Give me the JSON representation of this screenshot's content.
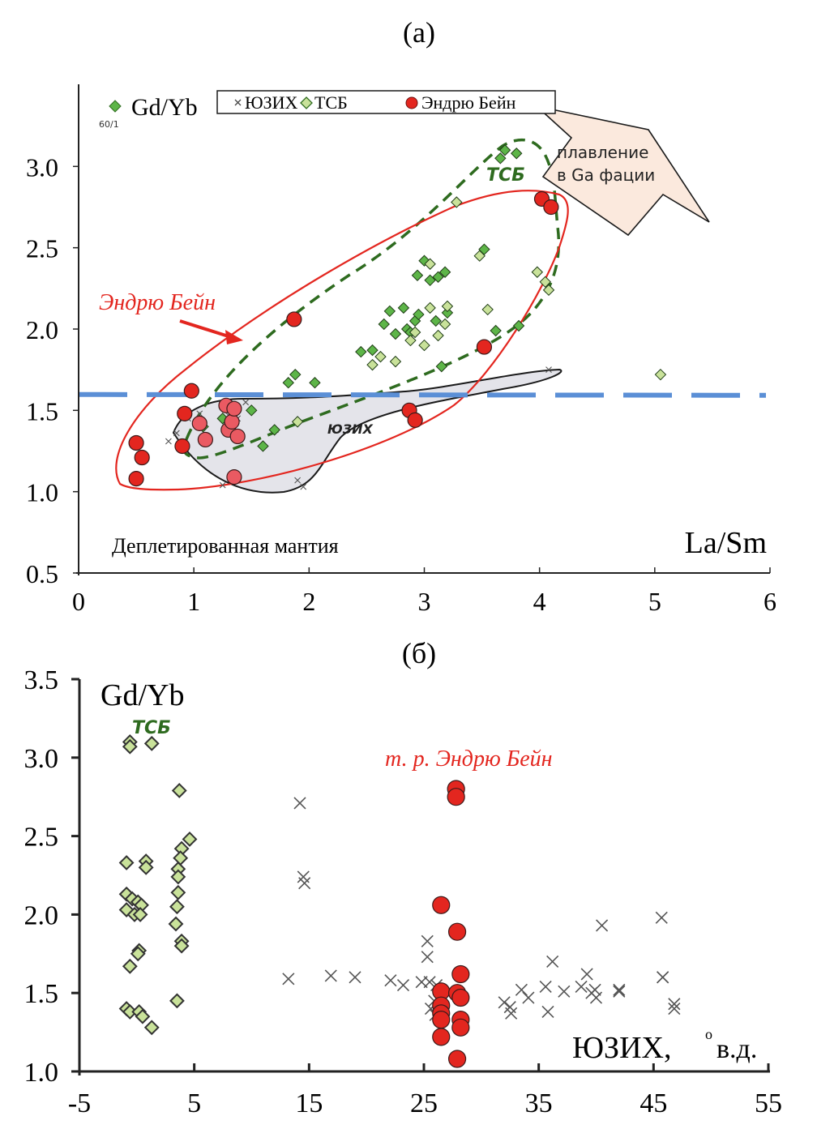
{
  "colors": {
    "ypg_cross": "#555555",
    "tsb_dark": "#5db548",
    "tsb_light": "#c9e29a",
    "tsb_outline": "#2e6b1f",
    "andrew_bain": "#e3261f",
    "andrew_bain_pale": "#ea5a62",
    "ypg_field": "#e4e4ea",
    "threshold_line": "#5b8fd6",
    "arrow_fill": "#fbe9dd"
  },
  "chart_data": [
    {
      "type": "scatter",
      "panel_label": "(a)",
      "xlabel": "La/Sm",
      "ylabel": "Gd/Yb",
      "ylabel_note": "60/1",
      "xlim": [
        0,
        6
      ],
      "ylim": [
        0.5,
        3.5
      ],
      "xticks": [
        "0",
        "1",
        "2",
        "3",
        "4",
        "5",
        "6"
      ],
      "yticks": [
        "0.5",
        "1.0",
        "1.5",
        "2.0",
        "2.5",
        "3.0"
      ],
      "legend": {
        "position": "top",
        "entries": [
          "ЮЗИХ",
          "ТСБ",
          "Эндрю Бейн"
        ]
      },
      "annotations": {
        "depleted_mantle": "Деплетированная мантия",
        "garnet_melting_line1": "плавление",
        "garnet_melting_line2": "в Ga фации",
        "tsb_field": "ТСБ",
        "ypg_field": "ЮЗИХ",
        "andrew_bain_label": "Эндрю Бейн"
      },
      "threshold_y": 1.6,
      "series": [
        {
          "name": "ЮЗИХ",
          "marker": "x",
          "points": [
            [
              0.78,
              1.31
            ],
            [
              0.85,
              1.36
            ],
            [
              0.95,
              1.45
            ],
            [
              1.05,
              1.48
            ],
            [
              1.25,
              1.04
            ],
            [
              1.3,
              1.47
            ],
            [
              1.38,
              1.45
            ],
            [
              1.45,
              1.55
            ],
            [
              1.9,
              1.07
            ],
            [
              1.95,
              1.03
            ],
            [
              4.08,
              1.75
            ]
          ]
        },
        {
          "name": "ТСБ (dark)",
          "marker": "diamond",
          "points": [
            [
              1.08,
              1.4
            ],
            [
              1.25,
              1.45
            ],
            [
              1.5,
              1.5
            ],
            [
              1.6,
              1.28
            ],
            [
              1.7,
              1.38
            ],
            [
              1.82,
              1.67
            ],
            [
              1.88,
              1.72
            ],
            [
              2.05,
              1.67
            ],
            [
              2.45,
              1.86
            ],
            [
              2.55,
              1.87
            ],
            [
              2.65,
              2.03
            ],
            [
              2.7,
              2.11
            ],
            [
              2.75,
              1.97
            ],
            [
              2.82,
              2.13
            ],
            [
              2.85,
              2.0
            ],
            [
              2.88,
              1.98
            ],
            [
              2.92,
              2.05
            ],
            [
              2.94,
              2.33
            ],
            [
              2.95,
              2.09
            ],
            [
              3.0,
              2.42
            ],
            [
              3.05,
              2.3
            ],
            [
              3.1,
              2.05
            ],
            [
              3.12,
              2.32
            ],
            [
              3.18,
              2.35
            ],
            [
              3.2,
              2.1
            ],
            [
              3.15,
              1.77
            ],
            [
              3.52,
              2.49
            ],
            [
              3.62,
              1.99
            ],
            [
              3.66,
              3.05
            ],
            [
              3.7,
              3.1
            ],
            [
              3.8,
              3.08
            ],
            [
              3.82,
              2.02
            ]
          ]
        },
        {
          "name": "ТСБ (light)",
          "marker": "diamond",
          "points": [
            [
              1.9,
              1.43
            ],
            [
              2.55,
              1.78
            ],
            [
              2.62,
              1.83
            ],
            [
              2.75,
              1.8
            ],
            [
              2.88,
              1.93
            ],
            [
              2.92,
              1.98
            ],
            [
              3.0,
              1.9
            ],
            [
              3.05,
              2.13
            ],
            [
              3.12,
              1.96
            ],
            [
              3.18,
              2.03
            ],
            [
              3.2,
              2.14
            ],
            [
              3.05,
              2.4
            ],
            [
              3.28,
              2.78
            ],
            [
              3.48,
              2.45
            ],
            [
              3.55,
              2.12
            ],
            [
              3.98,
              2.35
            ],
            [
              4.05,
              2.29
            ],
            [
              4.08,
              2.24
            ],
            [
              5.05,
              1.72
            ]
          ]
        },
        {
          "name": "Эндрю Бейн",
          "marker": "circle",
          "points": [
            [
              0.5,
              1.3
            ],
            [
              0.55,
              1.21
            ],
            [
              0.5,
              1.08
            ],
            [
              0.9,
              1.28
            ],
            [
              0.92,
              1.48
            ],
            [
              0.98,
              1.62
            ],
            [
              1.05,
              1.42
            ],
            [
              1.1,
              1.32
            ],
            [
              1.28,
              1.53
            ],
            [
              1.3,
              1.38
            ],
            [
              1.33,
              1.43
            ],
            [
              1.35,
              1.51
            ],
            [
              1.38,
              1.34
            ],
            [
              1.35,
              1.09
            ],
            [
              1.87,
              2.06
            ],
            [
              2.87,
              1.5
            ],
            [
              2.92,
              1.44
            ],
            [
              3.52,
              1.89
            ],
            [
              4.02,
              2.8
            ],
            [
              4.1,
              2.75
            ]
          ]
        }
      ]
    },
    {
      "type": "scatter",
      "panel_label": "(б)",
      "xlabel": "ЮЗИХ, °в.д.",
      "xlabel_text": "ЮЗИХ,",
      "xlabel_degree": "o",
      "xlabel_unit": "в.д.",
      "ylabel": "Gd/Yb",
      "xlim": [
        -5,
        55
      ],
      "ylim": [
        1.0,
        3.5
      ],
      "xticks": [
        "-5",
        "5",
        "15",
        "25",
        "35",
        "45",
        "55"
      ],
      "yticks": [
        "1.0",
        "1.5",
        "2.0",
        "2.5",
        "3.0",
        "3.5"
      ],
      "annotations": {
        "tsb_label": "ТСБ",
        "andrew_bain_label": "т. р. Эндрю Бейн"
      },
      "series": [
        {
          "name": "ТСБ",
          "marker": "diamond",
          "points": [
            [
              -0.6,
              3.1
            ],
            [
              -0.6,
              3.07
            ],
            [
              1.3,
              3.09
            ],
            [
              3.7,
              2.79
            ],
            [
              4.6,
              2.48
            ],
            [
              3.9,
              2.42
            ],
            [
              3.8,
              2.36
            ],
            [
              3.6,
              2.29
            ],
            [
              3.6,
              2.24
            ],
            [
              3.6,
              2.14
            ],
            [
              3.5,
              2.05
            ],
            [
              3.4,
              1.94
            ],
            [
              3.9,
              1.83
            ],
            [
              3.9,
              1.8
            ],
            [
              -0.9,
              2.33
            ],
            [
              0.8,
              2.34
            ],
            [
              0.8,
              2.3
            ],
            [
              -0.9,
              2.13
            ],
            [
              -0.4,
              2.1
            ],
            [
              0.1,
              2.08
            ],
            [
              0.4,
              2.06
            ],
            [
              -0.9,
              2.03
            ],
            [
              -0.2,
              2.0
            ],
            [
              0.3,
              2.0
            ],
            [
              0.2,
              1.77
            ],
            [
              0.1,
              1.75
            ],
            [
              -0.6,
              1.67
            ],
            [
              3.5,
              1.45
            ],
            [
              -0.9,
              1.4
            ],
            [
              -0.6,
              1.38
            ],
            [
              0.2,
              1.38
            ],
            [
              0.5,
              1.35
            ],
            [
              1.3,
              1.28
            ]
          ]
        },
        {
          "name": "ЮЗИХ",
          "marker": "x",
          "points": [
            [
              14.2,
              2.71
            ],
            [
              14.5,
              2.24
            ],
            [
              14.6,
              2.2
            ],
            [
              13.2,
              1.59
            ],
            [
              16.9,
              1.61
            ],
            [
              19.0,
              1.6
            ],
            [
              22.1,
              1.58
            ],
            [
              23.2,
              1.55
            ],
            [
              24.8,
              1.57
            ],
            [
              25.3,
              1.83
            ],
            [
              25.3,
              1.73
            ],
            [
              25.5,
              1.57
            ],
            [
              26.1,
              1.55
            ],
            [
              25.9,
              1.45
            ],
            [
              25.6,
              1.4
            ],
            [
              26.0,
              1.36
            ],
            [
              32.0,
              1.44
            ],
            [
              32.5,
              1.41
            ],
            [
              32.6,
              1.37
            ],
            [
              33.5,
              1.52
            ],
            [
              34.1,
              1.47
            ],
            [
              35.6,
              1.54
            ],
            [
              36.2,
              1.7
            ],
            [
              35.8,
              1.38
            ],
            [
              37.2,
              1.51
            ],
            [
              38.7,
              1.54
            ],
            [
              39.2,
              1.62
            ],
            [
              39.6,
              1.5
            ],
            [
              39.9,
              1.52
            ],
            [
              40.0,
              1.47
            ],
            [
              40.5,
              1.93
            ],
            [
              42.0,
              1.52
            ],
            [
              42.0,
              1.51
            ],
            [
              45.7,
              1.98
            ],
            [
              45.8,
              1.6
            ],
            [
              45.8,
              1.6
            ],
            [
              46.8,
              1.43
            ],
            [
              46.8,
              1.4
            ]
          ]
        },
        {
          "name": "т. р. Эндрю Бейн",
          "marker": "circle",
          "points": [
            [
              27.8,
              2.8
            ],
            [
              27.8,
              2.75
            ],
            [
              26.5,
              2.06
            ],
            [
              27.9,
              1.89
            ],
            [
              28.2,
              1.62
            ],
            [
              26.5,
              1.51
            ],
            [
              27.9,
              1.5
            ],
            [
              28.2,
              1.47
            ],
            [
              26.5,
              1.42
            ],
            [
              26.5,
              1.37
            ],
            [
              26.5,
              1.33
            ],
            [
              28.2,
              1.33
            ],
            [
              28.2,
              1.28
            ],
            [
              26.5,
              1.22
            ],
            [
              27.9,
              1.08
            ]
          ]
        }
      ]
    }
  ]
}
